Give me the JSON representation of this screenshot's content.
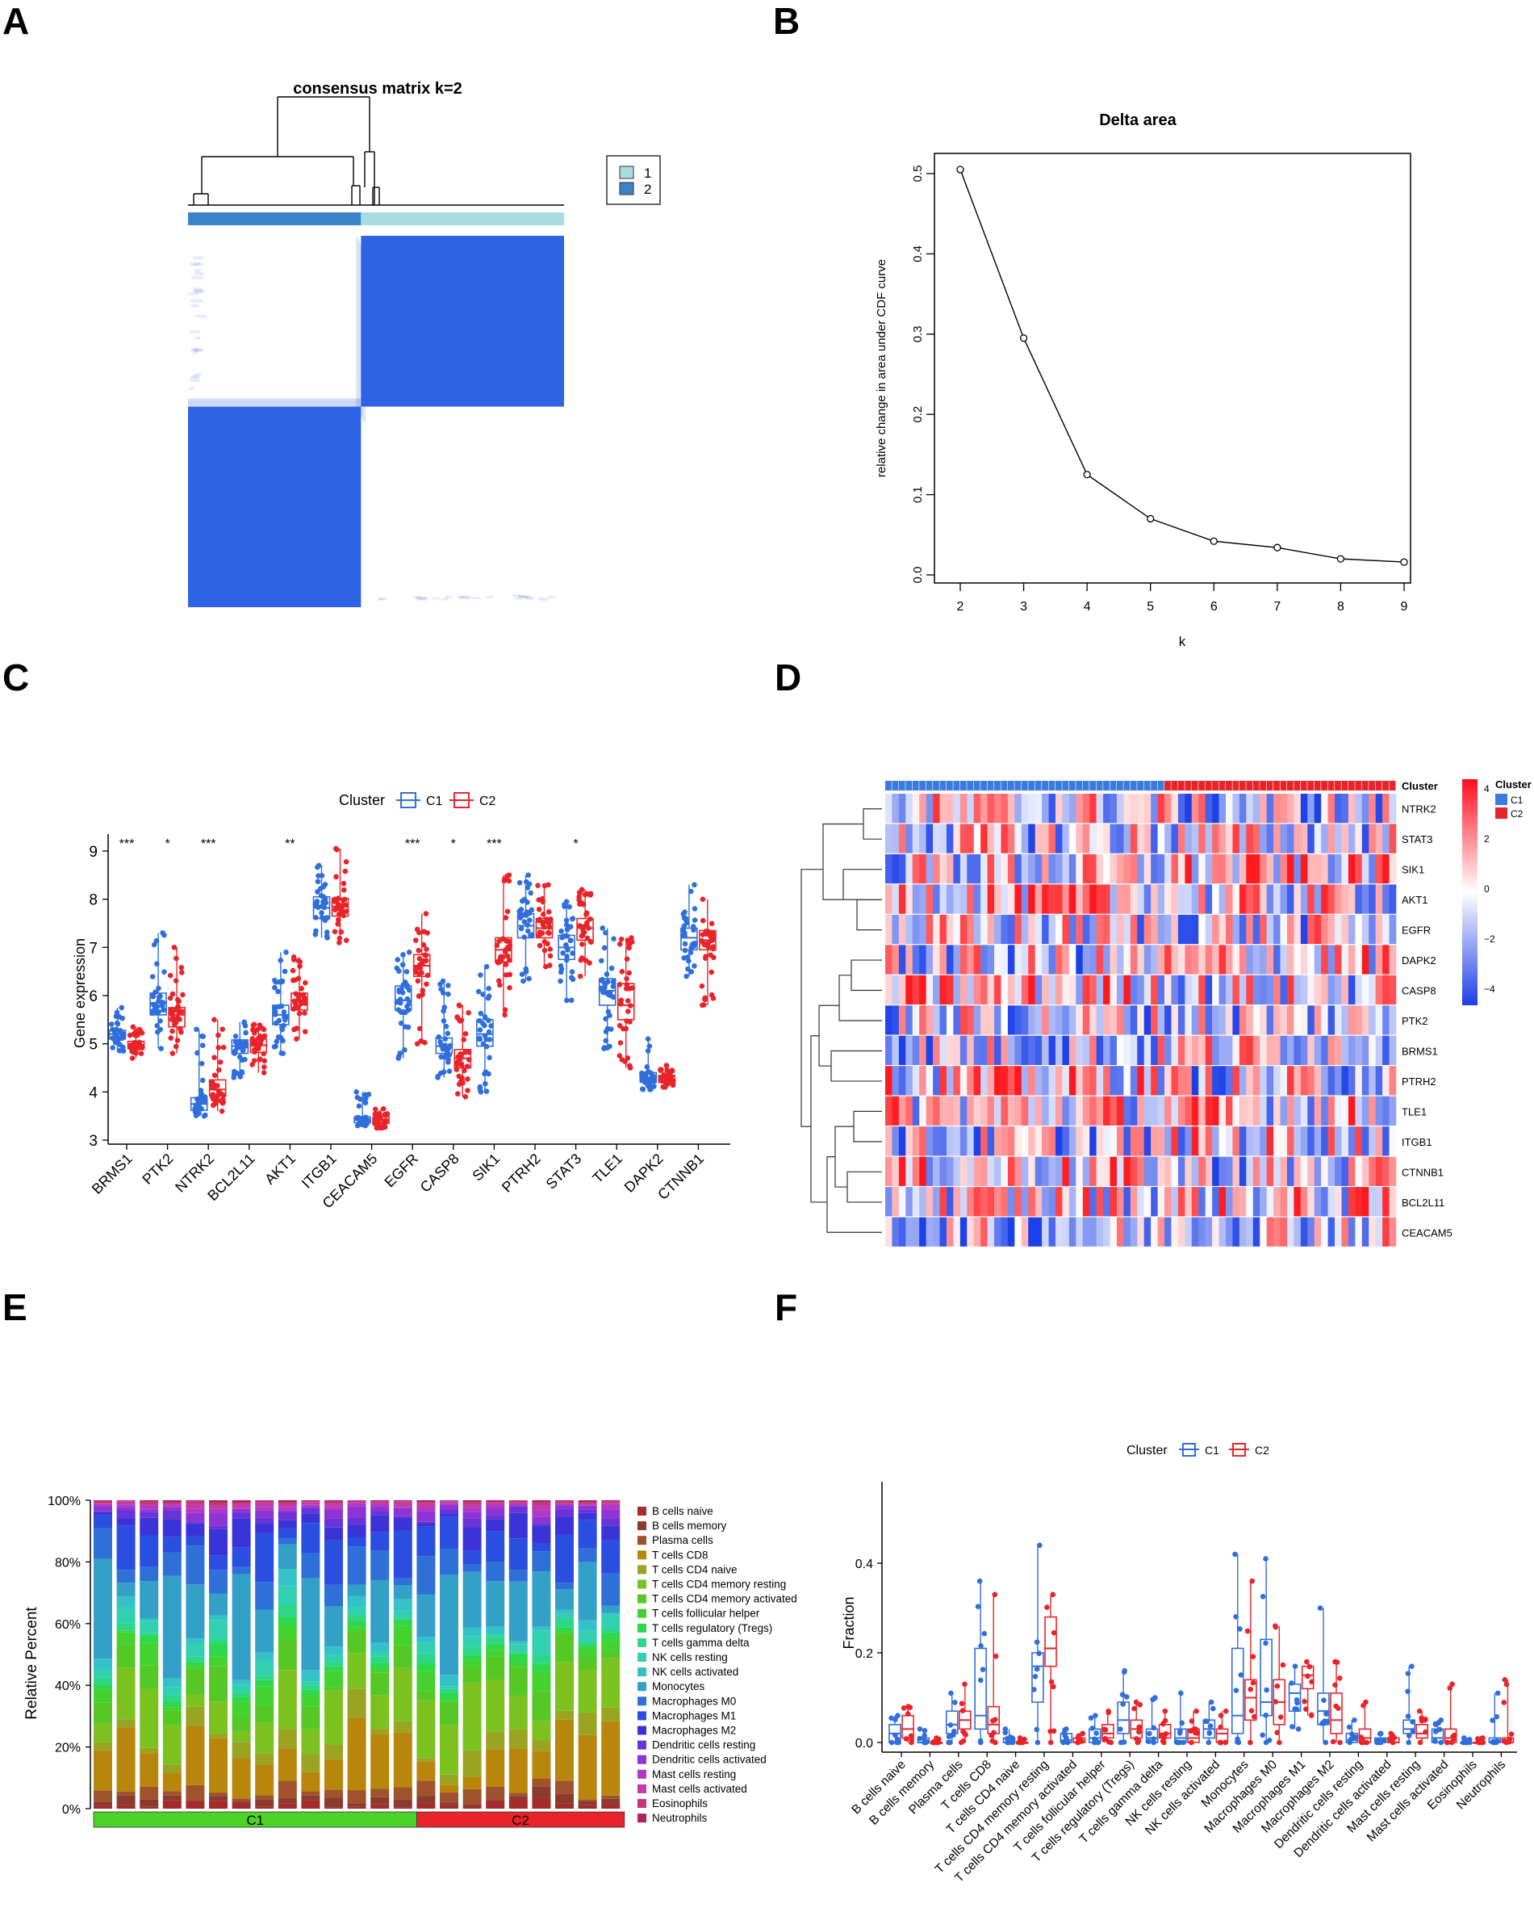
{
  "panels": {
    "A": {
      "letter": "A",
      "title": "consensus matrix k=2",
      "legend": [
        "1",
        "2"
      ],
      "colors": {
        "c1": "#a8dce0",
        "c2": "#3b83c9",
        "matrix": "#2f63e6"
      }
    },
    "B": {
      "letter": "B",
      "title": "Delta area",
      "xlabel": "k",
      "ylabel": "relative change in area under CDF curve"
    },
    "C": {
      "letter": "C",
      "legend_title": "Cluster",
      "ylabel": "Gene expression",
      "colors": {
        "C1": "#2f6fdb",
        "C2": "#e8242a"
      }
    },
    "D": {
      "letter": "D",
      "legend_title": "Cluster",
      "annot_label": "Cluster",
      "scale_ticks": [
        "4",
        "2",
        "0",
        "−2",
        "−4"
      ],
      "colors": {
        "C1": "#3b7be0",
        "C2": "#e8242a",
        "high": "#ff1020",
        "mid": "#ffffff",
        "low": "#1d3ee8"
      }
    },
    "E": {
      "letter": "E",
      "ylabel": "Relative Percent",
      "groups": [
        "C1",
        "C2"
      ],
      "group_colors": {
        "C1": "#4cd329",
        "C2": "#e8242a"
      }
    },
    "F": {
      "letter": "F",
      "legend_title": "Cluster",
      "ylabel": "Fraction",
      "colors": {
        "C1": "#2f6fdb",
        "C2": "#e8242a"
      }
    }
  },
  "chart_data": [
    {
      "id": "A",
      "type": "heatmap",
      "title": "consensus matrix k=2",
      "clusters": [
        {
          "name": "2",
          "fraction": 0.46
        },
        {
          "name": "1",
          "fraction": 0.54
        }
      ],
      "legend": [
        "1",
        "2"
      ]
    },
    {
      "id": "B",
      "type": "line",
      "title": "Delta area",
      "xlabel": "k",
      "ylabel": "relative change in area under CDF curve",
      "x": [
        2,
        3,
        4,
        5,
        6,
        7,
        8,
        9
      ],
      "y": [
        0.505,
        0.295,
        0.125,
        0.07,
        0.042,
        0.034,
        0.02,
        0.016
      ],
      "xlim": [
        2,
        9
      ],
      "ylim": [
        0,
        0.5
      ],
      "xticks": [
        "2",
        "3",
        "4",
        "5",
        "6",
        "7",
        "8",
        "9"
      ],
      "yticks": [
        "0.0",
        "0.1",
        "0.2",
        "0.3",
        "0.4",
        "0.5"
      ]
    },
    {
      "id": "C",
      "type": "box",
      "ylabel": "Gene expression",
      "ylim": [
        3,
        9
      ],
      "yticks": [
        "3",
        "4",
        "5",
        "6",
        "7",
        "8",
        "9"
      ],
      "legend": [
        "C1",
        "C2"
      ],
      "genes": [
        {
          "name": "BRMS1",
          "sig": "***",
          "C1": [
            4.85,
            5.1,
            5.2,
            5.28,
            5.75
          ],
          "C2": [
            4.7,
            4.9,
            4.98,
            5.05,
            5.35
          ]
        },
        {
          "name": "PTK2",
          "sig": "*",
          "C1": [
            4.9,
            5.6,
            5.85,
            6.05,
            7.3
          ],
          "C2": [
            4.8,
            5.35,
            5.6,
            5.75,
            7.0
          ]
        },
        {
          "name": "NTRK2",
          "sig": "***",
          "C1": [
            3.5,
            3.62,
            3.75,
            3.88,
            5.3
          ],
          "C2": [
            3.6,
            3.92,
            4.05,
            4.25,
            5.5
          ]
        },
        {
          "name": "BCL2L11",
          "sig": "",
          "C1": [
            4.3,
            4.8,
            4.95,
            5.08,
            5.45
          ],
          "C2": [
            4.4,
            4.82,
            4.97,
            5.1,
            5.4
          ]
        },
        {
          "name": "AKT1",
          "sig": "**",
          "C1": [
            4.8,
            5.4,
            5.6,
            5.8,
            6.9
          ],
          "C2": [
            5.1,
            5.7,
            5.9,
            6.05,
            6.8
          ]
        },
        {
          "name": "ITGB1",
          "sig": "",
          "C1": [
            7.2,
            7.6,
            7.82,
            8.05,
            8.7
          ],
          "C2": [
            7.1,
            7.65,
            7.85,
            8.02,
            9.05
          ]
        },
        {
          "name": "CEACAM5",
          "sig": "",
          "C1": [
            3.3,
            3.36,
            3.42,
            3.48,
            4.0
          ],
          "C2": [
            3.25,
            3.35,
            3.42,
            3.48,
            3.65
          ]
        },
        {
          "name": "EGFR",
          "sig": "***",
          "C1": [
            4.7,
            5.7,
            5.9,
            6.2,
            6.9
          ],
          "C2": [
            5.0,
            6.4,
            6.62,
            6.85,
            7.7
          ]
        },
        {
          "name": "CASP8",
          "sig": "*",
          "C1": [
            4.3,
            4.8,
            4.95,
            5.12,
            6.3
          ],
          "C2": [
            3.9,
            4.5,
            4.7,
            4.88,
            5.8
          ]
        },
        {
          "name": "SIK1",
          "sig": "***",
          "C1": [
            4.0,
            4.95,
            5.2,
            5.5,
            6.6
          ],
          "C2": [
            5.6,
            6.7,
            6.95,
            7.2,
            8.5
          ]
        },
        {
          "name": "PTRH2",
          "sig": "",
          "C1": [
            6.3,
            7.2,
            7.45,
            7.7,
            8.5
          ],
          "C2": [
            6.6,
            7.2,
            7.4,
            7.6,
            8.3
          ]
        },
        {
          "name": "STAT3",
          "sig": "*",
          "C1": [
            5.9,
            6.75,
            7.0,
            7.25,
            7.95
          ],
          "C2": [
            6.4,
            7.15,
            7.4,
            7.6,
            8.2
          ]
        },
        {
          "name": "TLE1",
          "sig": "",
          "C1": [
            4.9,
            5.8,
            6.1,
            6.35,
            7.4
          ],
          "C2": [
            4.5,
            5.5,
            5.8,
            6.25,
            7.2
          ]
        },
        {
          "name": "DAPK2",
          "sig": "",
          "C1": [
            4.05,
            4.2,
            4.3,
            4.4,
            5.1
          ],
          "C2": [
            4.1,
            4.2,
            4.27,
            4.34,
            4.55
          ]
        },
        {
          "name": "CTNNB1",
          "sig": "",
          "C1": [
            6.4,
            6.95,
            7.2,
            7.4,
            8.3
          ],
          "C2": [
            5.8,
            6.95,
            7.15,
            7.35,
            8.0
          ]
        }
      ]
    },
    {
      "id": "D",
      "type": "heatmap",
      "rows": [
        "NTRK2",
        "STAT3",
        "SIK1",
        "AKT1",
        "EGFR",
        "DAPK2",
        "CASP8",
        "PTK2",
        "BRMS1",
        "PTRH2",
        "TLE1",
        "ITGB1",
        "CTNNB1",
        "BCL2L11",
        "CEACAM5"
      ],
      "columns": 75,
      "group_split": 0.54,
      "legend": [
        "C1",
        "C2"
      ],
      "scale_range": [
        -4,
        4
      ]
    },
    {
      "id": "E",
      "type": "bar",
      "stacked": true,
      "ylabel": "Relative Percent",
      "yticks": [
        "0%",
        "20%",
        "40%",
        "60%",
        "80%",
        "100%"
      ],
      "groups": [
        {
          "name": "C1",
          "samples": 14
        },
        {
          "name": "C2",
          "samples": 9
        }
      ],
      "series": [
        {
          "name": "B cells naive",
          "color": "#a52a2a"
        },
        {
          "name": "B cells memory",
          "color": "#8b3a2e"
        },
        {
          "name": "Plasma cells",
          "color": "#a0522d"
        },
        {
          "name": "T cells CD8",
          "color": "#b8860b"
        },
        {
          "name": "T cells CD4 naive",
          "color": "#9aa322"
        },
        {
          "name": "T cells CD4 memory resting",
          "color": "#7cc21f"
        },
        {
          "name": "T cells CD4 memory activated",
          "color": "#55c825"
        },
        {
          "name": "T cells follicular helper",
          "color": "#43d22f"
        },
        {
          "name": "T cells regulatory (Tregs)",
          "color": "#2ed84c"
        },
        {
          "name": "T cells gamma delta",
          "color": "#2ed687"
        },
        {
          "name": "NK cells resting",
          "color": "#30d0b0"
        },
        {
          "name": "NK cells activated",
          "color": "#34c2c8"
        },
        {
          "name": "Monocytes",
          "color": "#33a0c8"
        },
        {
          "name": "Macrophages M0",
          "color": "#2f70d8"
        },
        {
          "name": "Macrophages M1",
          "color": "#2a4ee0"
        },
        {
          "name": "Macrophages M2",
          "color": "#3a34d8"
        },
        {
          "name": "Dendritic cells resting",
          "color": "#6a33d8"
        },
        {
          "name": "Dendritic cells activated",
          "color": "#8f33d4"
        },
        {
          "name": "Mast cells resting",
          "color": "#b037c8"
        },
        {
          "name": "Mast cells activated",
          "color": "#c53aa8"
        },
        {
          "name": "Eosinophils",
          "color": "#c5357c"
        },
        {
          "name": "Neutrophils",
          "color": "#b0245a"
        }
      ]
    },
    {
      "id": "F",
      "type": "box",
      "ylabel": "Fraction",
      "ylim": [
        0,
        0.55
      ],
      "yticks": [
        "0.0",
        "0.2",
        "0.4"
      ],
      "legend": [
        "C1",
        "C2"
      ],
      "cells": [
        {
          "name": "B cells naive",
          "C1": [
            0,
            0,
            0.02,
            0.04,
            0.06
          ],
          "C2": [
            0,
            0.01,
            0.03,
            0.06,
            0.08
          ]
        },
        {
          "name": "B cells memory",
          "C1": [
            0,
            0,
            0,
            0.01,
            0.03
          ],
          "C2": [
            0,
            0,
            0,
            0,
            0.01
          ]
        },
        {
          "name": "Plasma cells",
          "C1": [
            0,
            0.02,
            0.04,
            0.07,
            0.11
          ],
          "C2": [
            0,
            0.03,
            0.05,
            0.07,
            0.13
          ]
        },
        {
          "name": "T cells CD8",
          "C1": [
            0,
            0.03,
            0.06,
            0.21,
            0.36
          ],
          "C2": [
            0,
            0.02,
            0.04,
            0.08,
            0.33
          ]
        },
        {
          "name": "T cells CD4 naive",
          "C1": [
            0,
            0,
            0,
            0.01,
            0.03
          ],
          "C2": [
            0,
            0,
            0,
            0,
            0.01
          ]
        },
        {
          "name": "T cells CD4 memory resting",
          "C1": [
            0,
            0.09,
            0.17,
            0.2,
            0.44
          ],
          "C2": [
            0,
            0.17,
            0.21,
            0.28,
            0.33
          ]
        },
        {
          "name": "T cells CD4 memory activated",
          "C1": [
            0,
            0,
            0.005,
            0.02,
            0.03
          ],
          "C2": [
            0,
            0,
            0,
            0.01,
            0.02
          ]
        },
        {
          "name": "T cells follicular helper",
          "C1": [
            0,
            0,
            0.01,
            0.03,
            0.06
          ],
          "C2": [
            0,
            0.01,
            0.02,
            0.04,
            0.07
          ]
        },
        {
          "name": "T cells regulatory (Tregs)",
          "C1": [
            0,
            0.02,
            0.05,
            0.09,
            0.16
          ],
          "C2": [
            0,
            0.01,
            0.03,
            0.05,
            0.09
          ]
        },
        {
          "name": "T cells gamma delta",
          "C1": [
            0,
            0,
            0.01,
            0.03,
            0.1
          ],
          "C2": [
            0,
            0.01,
            0.02,
            0.04,
            0.07
          ]
        },
        {
          "name": "NK cells resting",
          "C1": [
            0,
            0,
            0.01,
            0.03,
            0.11
          ],
          "C2": [
            0,
            0,
            0.01,
            0.03,
            0.07
          ]
        },
        {
          "name": "NK cells activated",
          "C1": [
            0,
            0.01,
            0.03,
            0.05,
            0.09
          ],
          "C2": [
            0,
            0,
            0.02,
            0.03,
            0.07
          ]
        },
        {
          "name": "Monocytes",
          "C1": [
            0,
            0.02,
            0.06,
            0.21,
            0.42
          ],
          "C2": [
            0,
            0.05,
            0.1,
            0.14,
            0.36
          ]
        },
        {
          "name": "Macrophages M0",
          "C1": [
            0,
            0.06,
            0.09,
            0.23,
            0.41
          ],
          "C2": [
            0,
            0.04,
            0.09,
            0.14,
            0.26
          ]
        },
        {
          "name": "Macrophages M1",
          "C1": [
            0.03,
            0.07,
            0.11,
            0.13,
            0.17
          ],
          "C2": [
            0.06,
            0.12,
            0.15,
            0.17,
            0.18
          ]
        },
        {
          "name": "Macrophages M2",
          "C1": [
            0,
            0.04,
            0.07,
            0.11,
            0.3
          ],
          "C2": [
            0,
            0.02,
            0.05,
            0.11,
            0.18
          ]
        },
        {
          "name": "Dendritic cells resting",
          "C1": [
            0,
            0,
            0.005,
            0.02,
            0.05
          ],
          "C2": [
            0,
            0,
            0.01,
            0.03,
            0.09
          ]
        },
        {
          "name": "Dendritic cells activated",
          "C1": [
            0,
            0,
            0,
            0.01,
            0.02
          ],
          "C2": [
            0,
            0,
            0,
            0.01,
            0.02
          ]
        },
        {
          "name": "Mast cells resting",
          "C1": [
            0,
            0.02,
            0.03,
            0.05,
            0.17
          ],
          "C2": [
            0,
            0.01,
            0.02,
            0.04,
            0.07
          ]
        },
        {
          "name": "Mast cells activated",
          "C1": [
            0,
            0,
            0.01,
            0.03,
            0.05
          ],
          "C2": [
            0,
            0,
            0.01,
            0.03,
            0.13
          ]
        },
        {
          "name": "Eosinophils",
          "C1": [
            0,
            0,
            0,
            0,
            0.01
          ],
          "C2": [
            0,
            0,
            0,
            0,
            0.01
          ]
        },
        {
          "name": "Neutrophils",
          "C1": [
            0,
            0,
            0,
            0.01,
            0.11
          ],
          "C2": [
            0,
            0,
            0,
            0.01,
            0.14
          ]
        }
      ]
    }
  ]
}
